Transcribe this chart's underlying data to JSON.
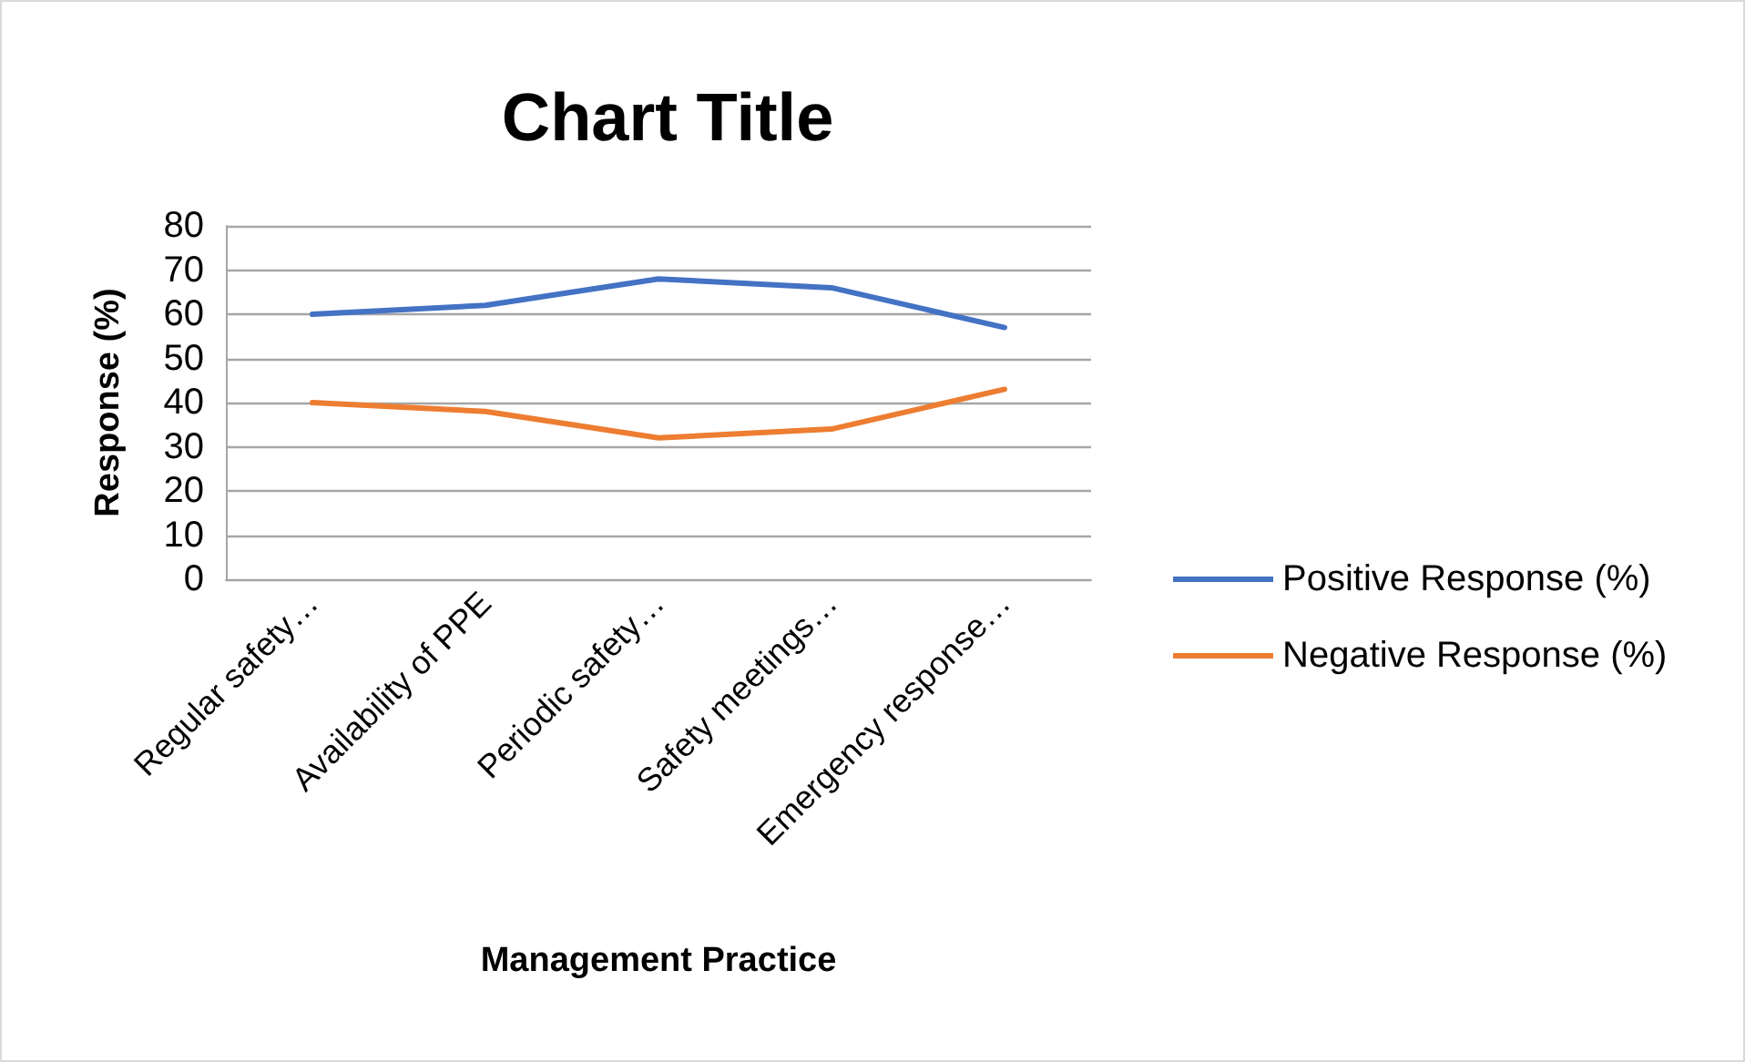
{
  "chart_data": {
    "type": "line",
    "title": "Chart Title",
    "xlabel": "Management Practice",
    "ylabel": "Response (%)",
    "categories": [
      "Regular safety…",
      "Availability of PPE",
      "Periodic safety…",
      "Safety meetings…",
      "Emergency response…"
    ],
    "series": [
      {
        "name": "Positive Response (%)",
        "color": "#4472c4",
        "values": [
          60,
          62,
          68,
          66,
          57
        ]
      },
      {
        "name": "Negative Response (%)",
        "color": "#ed7d31",
        "values": [
          40,
          38,
          32,
          34,
          43
        ]
      }
    ],
    "ylim": [
      0,
      80
    ],
    "yticks": [
      0,
      10,
      20,
      30,
      40,
      50,
      60,
      70,
      80
    ],
    "grid": "y",
    "legend": "right",
    "marker": "none",
    "line_style": "solid"
  }
}
